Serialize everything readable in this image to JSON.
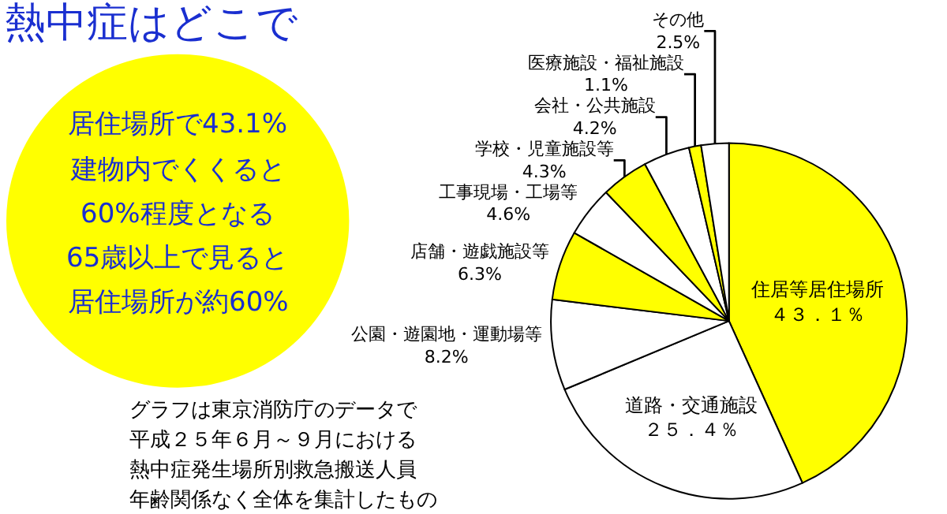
{
  "chart_data": {
    "type": "pie",
    "title": "熱中症はどこで",
    "categories": [
      "住居等居住場所",
      "道路・交通施設",
      "公園・遊園地・運動場等",
      "店舗・遊戯施設等",
      "工事現場・工場等",
      "学校・児童施設等",
      "会社・公共施設",
      "医療施設・福祉施設",
      "その他"
    ],
    "values": [
      43.1,
      25.4,
      8.2,
      6.3,
      4.6,
      4.3,
      4.2,
      1.1,
      2.5
    ],
    "value_labels": [
      "４３．１％",
      "２５．４％",
      "8.2%",
      "6.3%",
      "4.6%",
      "4.3%",
      "4.2%",
      "1.1%",
      "2.5%"
    ],
    "colors": [
      "#ffff00",
      "#ffffff",
      "#ffffff",
      "#ffff00",
      "#ffffff",
      "#ffff00",
      "#ffffff",
      "#ffff00",
      "#ffffff"
    ],
    "legend": false,
    "annotations": [
      "居住場所で43.1%",
      "建物内でくくると",
      "60%程度となる",
      "65歳以上で見ると",
      "居住場所が約60%",
      "グラフは東京消防庁のデータで",
      "平成２５年６月～９月における",
      "熱中症発生場所別救急搬送人員",
      "年齢関係なく全体を集計したもの"
    ]
  }
}
